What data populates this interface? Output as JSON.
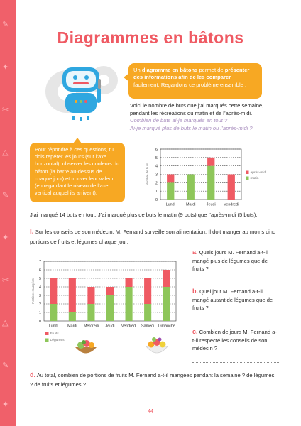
{
  "page": {
    "title": "Diagrammes en bâtons",
    "page_number": "44",
    "colors": {
      "accent": "#ef5a63",
      "bubble": "#f7a823",
      "fruits": "#ef5a63",
      "legumes": "#8ec65a"
    }
  },
  "intro_bubble": {
    "t1": "Un ",
    "b1": "diagramme en bâtons",
    "t2": " permet de ",
    "b2": "présenter des informations afin de les comparer",
    "t3": " facilement. Regardons ce problème ensemble :"
  },
  "situation": {
    "text": "Voici le nombre de buts que j’ai marqués cette semaine, pendant les récréations du matin et de l’après-midi.",
    "question1": "Combien de buts ai-je marqués en tout ?",
    "question2": "Ai-je marqué plus de buts le matin ou l’après-midi ?"
  },
  "tip_bubble": {
    "text": "Pour répondre à ces questions, tu dois repérer les jours (sur l’axe horizontal), observer les couleurs du bâton (la barre au-dessus de chaque jour) et trouver leur valeur (en regardant le niveau de l’axe vertical auquel ils arrivent)."
  },
  "conclusion": "J’ai marqué 14 buts en tout. J’ai marqué plus de buts le matin (9 buts) que l’après-midi (5 buts).",
  "exercise": {
    "number": "I.",
    "text": "Sur les conseils de son médecin, M. Fernand surveille son alimentation. Il doit manger au moins cinq portions de fruits et légumes chaque jour."
  },
  "questions": {
    "a": {
      "letter": "a.",
      "text": "Quels jours M. Fernand a-t-il mangé plus de légumes que de fruits ?"
    },
    "b": {
      "letter": "b.",
      "text": "Quel jour M. Fernand a-t-il mangé autant de légumes que de fruits ?"
    },
    "c": {
      "letter": "c.",
      "text": "Combien de jours M. Fernand a-t-il respecté les conseils de son médecin ?"
    },
    "d": {
      "letter": "d.",
      "text": "Au total, combien de portions de fruits M. Fernand a-t-il mangées pendant la semaine ? de légumes ? de fruits et légumes ?"
    }
  },
  "chart_data": [
    {
      "type": "bar",
      "stacked": true,
      "categories": [
        "Lundi",
        "Mardi",
        "Jeudi",
        "Vendredi"
      ],
      "ylabel": "Nombre de buts",
      "ylim": [
        0,
        6
      ],
      "yticks": [
        "0",
        "1",
        "2",
        "3",
        "4",
        "5",
        "6"
      ],
      "grid": "horizontal dotted",
      "legend_position": "right",
      "series": [
        {
          "name": "matin",
          "color": "#8ec65a",
          "values": [
            2,
            3,
            4,
            0
          ]
        },
        {
          "name": "après-midi",
          "color": "#ef5a63",
          "values": [
            1,
            0,
            1,
            3
          ]
        }
      ]
    },
    {
      "type": "bar",
      "stacked": true,
      "categories": [
        "Lundi",
        "Mardi",
        "Mercredi",
        "Jeudi",
        "Vendredi",
        "Samedi",
        "Dimanche"
      ],
      "ylabel": "Portions mangées",
      "ylim": [
        0,
        7
      ],
      "yticks": [
        "0",
        "1",
        "2",
        "3",
        "4",
        "5",
        "6",
        "7"
      ],
      "grid": "horizontal dotted",
      "legend_position": "bottom-left",
      "series": [
        {
          "name": "Légumes",
          "color": "#8ec65a",
          "values": [
            2,
            1,
            2,
            3,
            4,
            2,
            4
          ]
        },
        {
          "name": "Fruits",
          "color": "#ef5a63",
          "values": [
            3,
            4,
            2,
            1,
            1,
            3,
            2
          ]
        }
      ]
    }
  ]
}
